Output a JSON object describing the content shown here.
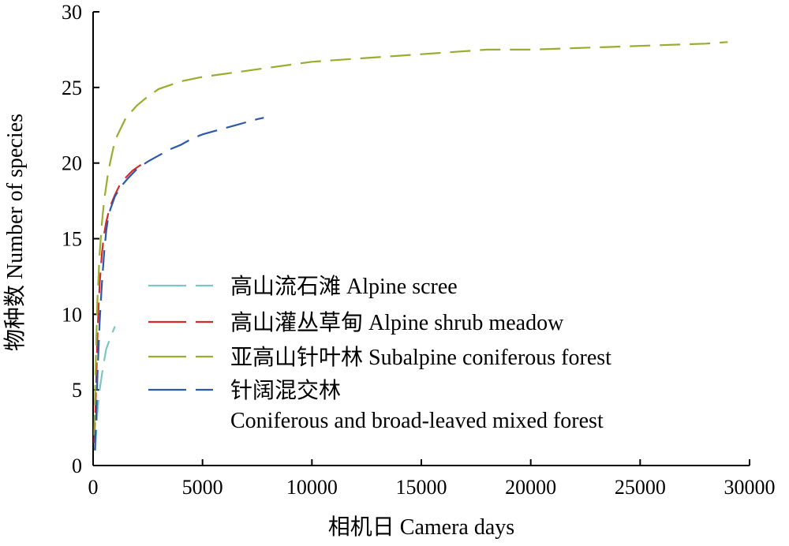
{
  "chart_data": {
    "type": "line",
    "title": "",
    "xlabel": "相机日 Camera days",
    "ylabel": "物种数 Number of species",
    "xlim": [
      0,
      30000
    ],
    "ylim": [
      0,
      30
    ],
    "xticks": [
      0,
      5000,
      10000,
      15000,
      20000,
      25000,
      30000
    ],
    "yticks": [
      0,
      5,
      10,
      15,
      20,
      25,
      30
    ],
    "xtick_labels": [
      "0",
      "5000",
      "10000",
      "15000",
      "20000",
      "25000",
      "30000"
    ],
    "ytick_labels": [
      "0",
      "5",
      "10",
      "15",
      "20",
      "25",
      "30"
    ],
    "grid": false,
    "legend_position": "center-right",
    "series": [
      {
        "name": "高山流石滩 Alpine scree",
        "name_line2": "",
        "color": "#7ac8bf",
        "x": [
          100,
          150,
          200,
          300,
          400,
          500,
          600,
          800,
          1000
        ],
        "y": [
          1.0,
          2.5,
          3.6,
          5.0,
          6.0,
          6.9,
          7.7,
          8.5,
          9.2
        ]
      },
      {
        "name": "高山灌丛草甸 Alpine shrub meadow",
        "name_line2": "",
        "color": "#d42a2a",
        "x": [
          50,
          100,
          150,
          200,
          250,
          300,
          400,
          500,
          600,
          700,
          800,
          1000,
          1200,
          1400,
          1600,
          1800,
          2000,
          2300
        ],
        "y": [
          1.5,
          3.5,
          6.0,
          8.5,
          10.5,
          12.0,
          14.0,
          15.3,
          16.1,
          16.7,
          17.2,
          17.9,
          18.5,
          18.9,
          19.2,
          19.5,
          19.7,
          20.0
        ]
      },
      {
        "name": "亚高山针叶林 Subalpine coniferous forest",
        "name_line2": "",
        "color": "#9aad2e",
        "x": [
          50,
          100,
          150,
          200,
          300,
          400,
          500,
          700,
          1000,
          1500,
          2000,
          2500,
          3000,
          4000,
          5000,
          6000,
          7000,
          8000,
          9000,
          10000,
          11000,
          12000,
          14000,
          16000,
          18000,
          20000,
          22000,
          24000,
          26000,
          28000,
          29000
        ],
        "y": [
          2.0,
          5.5,
          8.5,
          11.0,
          14.0,
          16.0,
          17.5,
          19.5,
          21.5,
          23.0,
          23.8,
          24.4,
          24.9,
          25.4,
          25.7,
          25.9,
          26.1,
          26.3,
          26.5,
          26.7,
          26.8,
          26.9,
          27.1,
          27.3,
          27.5,
          27.5,
          27.6,
          27.7,
          27.8,
          27.9,
          28.0
        ]
      },
      {
        "name": "针阔混交林",
        "name_line2": "Coniferous and broad-leaved mixed forest",
        "color": "#2c5aa8",
        "x": [
          80,
          150,
          200,
          300,
          400,
          500,
          600,
          700,
          800,
          1000,
          1300,
          1600,
          2000,
          2500,
          3000,
          3500,
          4000,
          4500,
          5000,
          5500,
          6000,
          6500,
          7000,
          7500,
          7800
        ],
        "y": [
          1.0,
          3.5,
          6.0,
          9.5,
          12.0,
          14.0,
          15.5,
          16.5,
          17.0,
          17.8,
          18.5,
          19.0,
          19.6,
          20.1,
          20.5,
          20.9,
          21.2,
          21.6,
          21.9,
          22.1,
          22.3,
          22.5,
          22.7,
          22.9,
          23.0
        ]
      }
    ]
  }
}
